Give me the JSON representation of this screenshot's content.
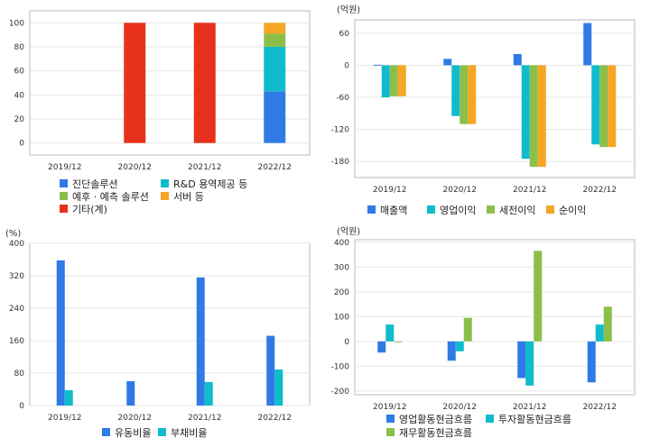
{
  "chart_data": [
    {
      "id": "product-mix",
      "type": "bar",
      "stacked": true,
      "unit_label": "",
      "categories": [
        "2019/12",
        "2020/12",
        "2021/12",
        "2022/12"
      ],
      "ylim": [
        -10,
        110
      ],
      "yticks": [
        0,
        20,
        40,
        60,
        80,
        100
      ],
      "series": [
        {
          "name": "진단솔루션",
          "color": "#2f7ae5",
          "values": [
            0,
            0,
            0,
            43
          ]
        },
        {
          "name": "R&D 용역제공 등",
          "color": "#10bccb",
          "values": [
            0,
            0,
            0,
            37
          ]
        },
        {
          "name": "예후 · 예측 솔루션",
          "color": "#8cbf4a",
          "values": [
            0,
            0,
            0,
            11
          ]
        },
        {
          "name": "서버 등",
          "color": "#f5a623",
          "values": [
            0,
            0,
            0,
            9
          ]
        },
        {
          "name": "기타(계)",
          "color": "#e8311c",
          "values": [
            0,
            100,
            100,
            0
          ]
        }
      ],
      "legend_order": [
        "진단솔루션",
        "R&D 용역제공 등",
        "예후 · 예측 솔루션",
        "서버 등",
        "기타(계)"
      ],
      "legend_columns": 2,
      "grid": true
    },
    {
      "id": "income",
      "type": "bar",
      "stacked": false,
      "unit_label": "(억원)",
      "categories": [
        "2019/12",
        "2020/12",
        "2021/12",
        "2022/12"
      ],
      "ylim": [
        -210,
        85
      ],
      "yticks": [
        -180,
        -120,
        -60,
        0,
        60
      ],
      "series": [
        {
          "name": "매출액",
          "color": "#2f7ae5",
          "values": [
            1,
            12,
            21,
            79
          ]
        },
        {
          "name": "영업이익",
          "color": "#10bccb",
          "values": [
            -60,
            -95,
            -175,
            -148
          ]
        },
        {
          "name": "세전이익",
          "color": "#8cbf4a",
          "values": [
            -58,
            -110,
            -190,
            -153
          ]
        },
        {
          "name": "순이익",
          "color": "#f5a623",
          "values": [
            -58,
            -110,
            -190,
            -153
          ]
        }
      ],
      "legend_columns": 4,
      "grid": true
    },
    {
      "id": "ratios",
      "type": "bar",
      "stacked": false,
      "unit_label": "(%)",
      "categories": [
        "2019/12",
        "2020/12",
        "2021/12",
        "2022/12"
      ],
      "ylim": [
        0,
        400
      ],
      "yticks": [
        0,
        80,
        160,
        240,
        320,
        400
      ],
      "series": [
        {
          "name": "유동비율",
          "color": "#2f7ae5",
          "values": [
            358,
            60,
            316,
            172
          ]
        },
        {
          "name": "부채비율",
          "color": "#10bccb",
          "values": [
            38,
            0,
            58,
            89
          ]
        }
      ],
      "legend_columns": 2,
      "grid": true
    },
    {
      "id": "cashflow",
      "type": "bar",
      "stacked": false,
      "unit_label": "(억원)",
      "categories": [
        "2019/12",
        "2020/12",
        "2021/12",
        "2022/12"
      ],
      "ylim": [
        -215,
        410
      ],
      "yticks": [
        -200,
        -100,
        0,
        100,
        200,
        300,
        400
      ],
      "series": [
        {
          "name": "영업활동현금흐름",
          "color": "#2f7ae5",
          "values": [
            -45,
            -78,
            -148,
            -165
          ]
        },
        {
          "name": "투자활동현금흐름",
          "color": "#10bccb",
          "values": [
            68,
            -40,
            -178,
            68
          ]
        },
        {
          "name": "재무활동현금흐름",
          "color": "#8cbf4a",
          "values": [
            -3,
            95,
            365,
            140
          ]
        }
      ],
      "legend_columns": 2,
      "grid": true
    }
  ]
}
